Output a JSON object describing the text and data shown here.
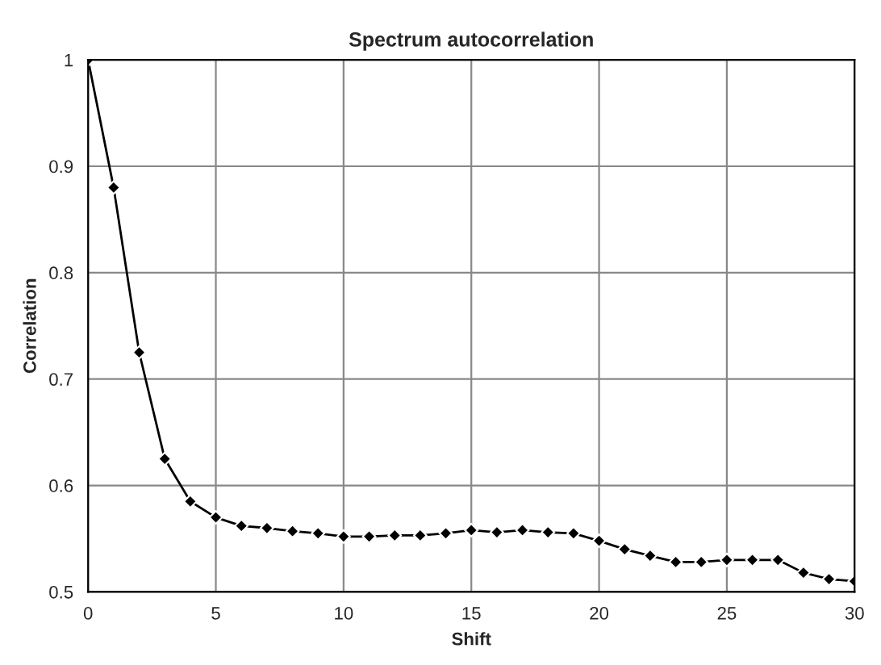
{
  "chart_data": {
    "type": "line",
    "title": "Spectrum autocorrelation",
    "xlabel": "Shift",
    "ylabel": "Correlation",
    "x": [
      0,
      1,
      2,
      3,
      4,
      5,
      6,
      7,
      8,
      9,
      10,
      11,
      12,
      13,
      14,
      15,
      16,
      17,
      18,
      19,
      20,
      21,
      22,
      23,
      24,
      25,
      26,
      27,
      28,
      29,
      30
    ],
    "series": [
      {
        "color": "#000000",
        "values": [
          1.0,
          0.88,
          0.725,
          0.625,
          0.585,
          0.57,
          0.562,
          0.56,
          0.557,
          0.555,
          0.552,
          0.552,
          0.553,
          0.553,
          0.555,
          0.558,
          0.556,
          0.558,
          0.556,
          0.555,
          0.548,
          0.54,
          0.534,
          0.528,
          0.528,
          0.53,
          0.53,
          0.53,
          0.518,
          0.512,
          0.51
        ]
      }
    ],
    "xlim": [
      0,
      30
    ],
    "ylim": [
      0.5,
      1
    ],
    "xticks": [
      0,
      5,
      10,
      15,
      20,
      25,
      30
    ],
    "yticks": [
      0.5,
      0.6,
      0.7,
      0.8,
      0.9,
      1
    ],
    "grid": true,
    "marker": "diamond",
    "line_style": "solid"
  }
}
